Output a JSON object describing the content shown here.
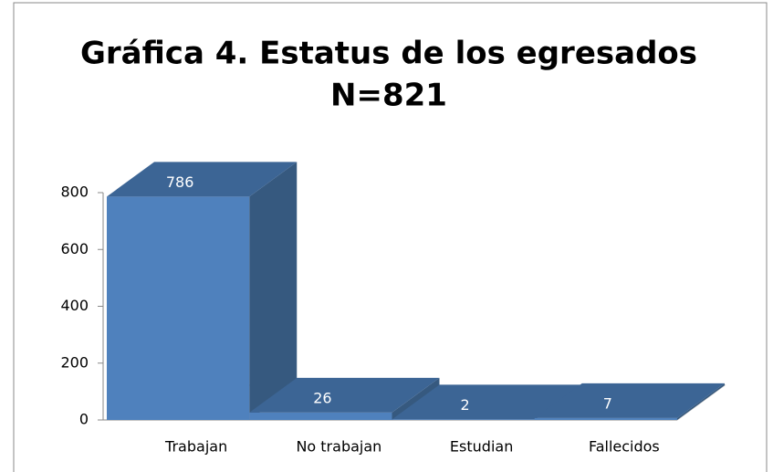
{
  "chart_data": {
    "type": "bar3d",
    "title": "Gráfica 4. Estatus de los egresados",
    "subtitle": "N=821",
    "categories": [
      "Trabajan",
      "No trabajan",
      "Estudian",
      "Fallecidos"
    ],
    "values": [
      786,
      26,
      2,
      7
    ],
    "color": "#4f81bd",
    "ylim": [
      0,
      800
    ],
    "yticks": [
      0,
      200,
      400,
      600,
      800
    ],
    "grid": false
  }
}
